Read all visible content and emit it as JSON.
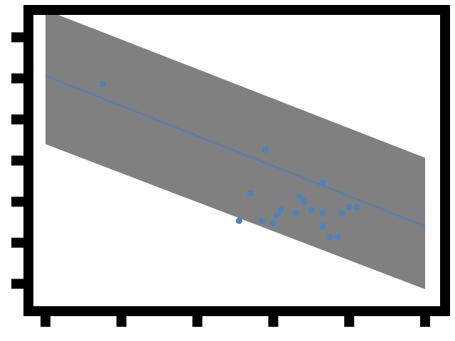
{
  "chart_data": {
    "type": "scatter",
    "title": "",
    "xlabel": "",
    "ylabel": "",
    "xlim": [
      0,
      100
    ],
    "ylim": [
      -10,
      100
    ],
    "grid": false,
    "legend": "none",
    "x_ticks": [
      0,
      20,
      40,
      60,
      80,
      100
    ],
    "y_ticks": [
      0,
      15,
      30,
      45,
      60,
      75,
      90
    ],
    "tick_labels_visible": false,
    "points": [
      {
        "x": 15,
        "y": 73
      },
      {
        "x": 58,
        "y": 49
      },
      {
        "x": 54,
        "y": 33
      },
      {
        "x": 62,
        "y": 27
      },
      {
        "x": 61,
        "y": 25
      },
      {
        "x": 66,
        "y": 26
      },
      {
        "x": 73,
        "y": 37
      },
      {
        "x": 67,
        "y": 32
      },
      {
        "x": 68,
        "y": 30
      },
      {
        "x": 70,
        "y": 27
      },
      {
        "x": 73,
        "y": 26
      },
      {
        "x": 51,
        "y": 23
      },
      {
        "x": 61,
        "y": 25
      },
      {
        "x": 78,
        "y": 26
      },
      {
        "x": 80,
        "y": 28
      },
      {
        "x": 82,
        "y": 28
      },
      {
        "x": 73,
        "y": 21
      },
      {
        "x": 77,
        "y": 17
      },
      {
        "x": 75,
        "y": 17
      },
      {
        "x": 57,
        "y": 23
      },
      {
        "x": 60,
        "y": 22
      }
    ],
    "fit_line": {
      "x": [
        0,
        100
      ],
      "y": [
        76,
        21
      ]
    },
    "band": {
      "x": [
        0,
        100
      ],
      "upper": [
        100,
        46
      ],
      "lower": [
        51,
        -2
      ]
    },
    "colors": {
      "points": "#4f81bd",
      "line": "#4f81bd",
      "band": "#808080",
      "axes": "#000000"
    }
  }
}
